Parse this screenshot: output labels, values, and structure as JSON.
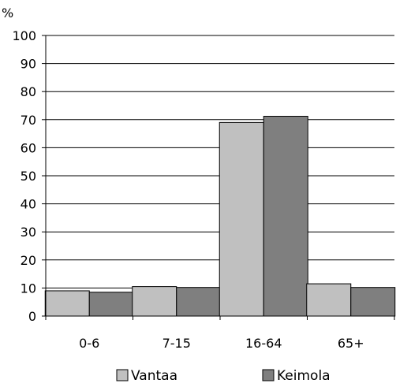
{
  "chart_data": {
    "type": "bar",
    "title": "",
    "xlabel": "",
    "ylabel": "%",
    "ylim": [
      0,
      100
    ],
    "yticks": [
      "0",
      "10",
      "20",
      "30",
      "40",
      "50",
      "60",
      "70",
      "80",
      "90",
      "100"
    ],
    "grid": true,
    "legend_position": "bottom",
    "categories": [
      "0-6",
      "7-15",
      "16-64",
      "65+"
    ],
    "series": [
      {
        "name": "Vantaa",
        "values": [
          9.0,
          10.5,
          69.0,
          11.5
        ],
        "color": "#c0c0c0"
      },
      {
        "name": "Keimola",
        "values": [
          8.5,
          10.2,
          71.2,
          10.2
        ],
        "color": "#7f7f7f"
      }
    ]
  }
}
